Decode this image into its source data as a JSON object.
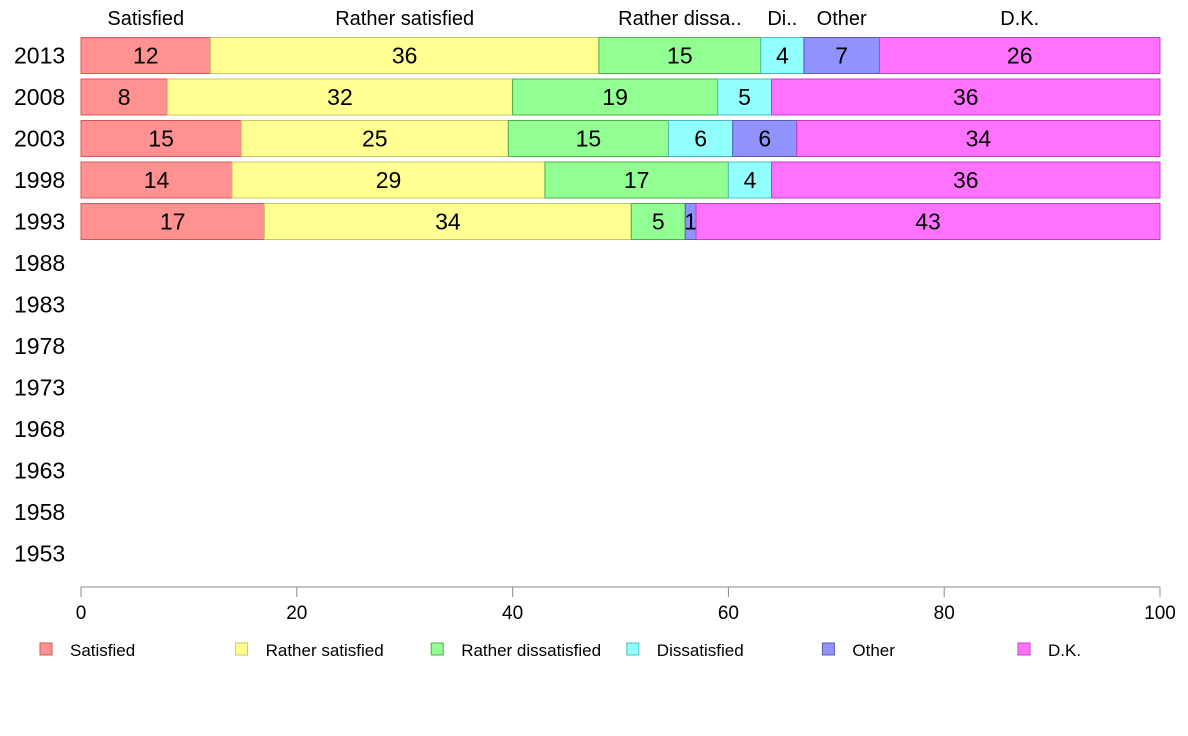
{
  "chart_data": {
    "type": "bar",
    "orientation": "horizontal",
    "stacked": true,
    "title": "",
    "xlabel": "",
    "ylabel": "",
    "xlim": [
      0,
      100
    ],
    "x_ticks": [
      "0",
      "20",
      "40",
      "60",
      "80",
      "100"
    ],
    "grid": false,
    "legend_position": "bottom",
    "categories": [
      "2013",
      "2008",
      "2003",
      "1998",
      "1993",
      "1988",
      "1983",
      "1978",
      "1973",
      "1968",
      "1963",
      "1958",
      "1953"
    ],
    "top_labels": [
      "Satisfied",
      "Rather satisfied",
      "Rather dissa..",
      "Di..",
      "Other",
      "D.K."
    ],
    "series": [
      {
        "name": "Satisfied",
        "color": "#ff9290",
        "values": [
          12,
          8,
          15,
          14,
          17,
          null,
          null,
          null,
          null,
          null,
          null,
          null,
          null
        ]
      },
      {
        "name": "Rather satisfied",
        "color": "#ffff92",
        "values": [
          36,
          32,
          25,
          29,
          34,
          null,
          null,
          null,
          null,
          null,
          null,
          null,
          null
        ]
      },
      {
        "name": "Rather dissatisfied",
        "color": "#92ff92",
        "values": [
          15,
          19,
          15,
          17,
          5,
          null,
          null,
          null,
          null,
          null,
          null,
          null,
          null
        ]
      },
      {
        "name": "Dissatisfied",
        "color": "#92ffff",
        "values": [
          4,
          5,
          6,
          4,
          0,
          null,
          null,
          null,
          null,
          null,
          null,
          null,
          null
        ]
      },
      {
        "name": "Other",
        "color": "#9292ff",
        "values": [
          7,
          0,
          6,
          0,
          1,
          null,
          null,
          null,
          null,
          null,
          null,
          null,
          null
        ]
      },
      {
        "name": "D.K.",
        "color": "#ff72ff",
        "values": [
          26,
          36,
          34,
          36,
          43,
          null,
          null,
          null,
          null,
          null,
          null,
          null,
          null
        ]
      }
    ]
  }
}
